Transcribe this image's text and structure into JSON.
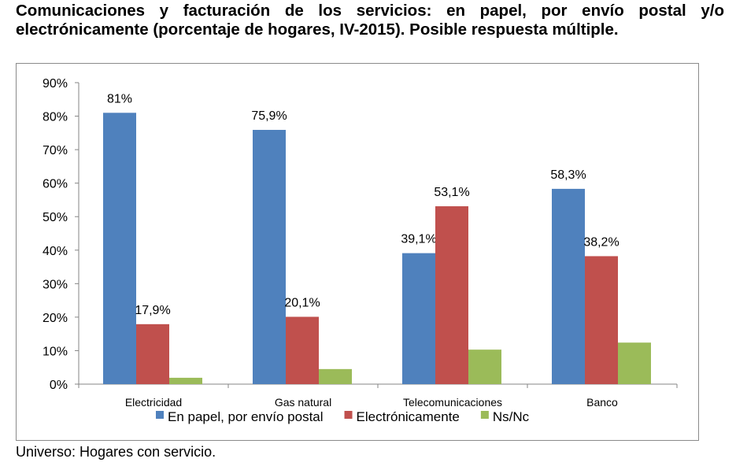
{
  "title": "Comunicaciones y facturación de los servicios: en papel, por envío postal y/o electrónicamente (porcentaje de hogares, IV-2015). Posible respuesta múltiple.",
  "footnote": "Universo: Hogares con servicio.",
  "chart_data": {
    "type": "bar",
    "categories": [
      "Electricidad",
      "Gas natural",
      "Telecomunicaciones",
      "Banco"
    ],
    "series": [
      {
        "name": "En papel, por envío postal",
        "color": "#4F81BD",
        "values": [
          81,
          75.9,
          39.1,
          58.3
        ],
        "labels": [
          "81%",
          "75,9%",
          "39,1%",
          "58,3%"
        ]
      },
      {
        "name": "Electrónicamente",
        "color": "#C0504D",
        "values": [
          17.9,
          20.1,
          53.1,
          38.2
        ],
        "labels": [
          "17,9%",
          "20,1%",
          "53,1%",
          "38,2%"
        ]
      },
      {
        "name": "Ns/Nc",
        "color": "#9BBB59",
        "values": [
          1.9,
          4.5,
          10.3,
          12.4
        ],
        "labels": []
      }
    ],
    "ylim": [
      0,
      90
    ],
    "yticks": [
      "0%",
      "10%",
      "20%",
      "30%",
      "40%",
      "50%",
      "60%",
      "70%",
      "80%",
      "90%"
    ],
    "grid": false,
    "legend": "bottom"
  }
}
